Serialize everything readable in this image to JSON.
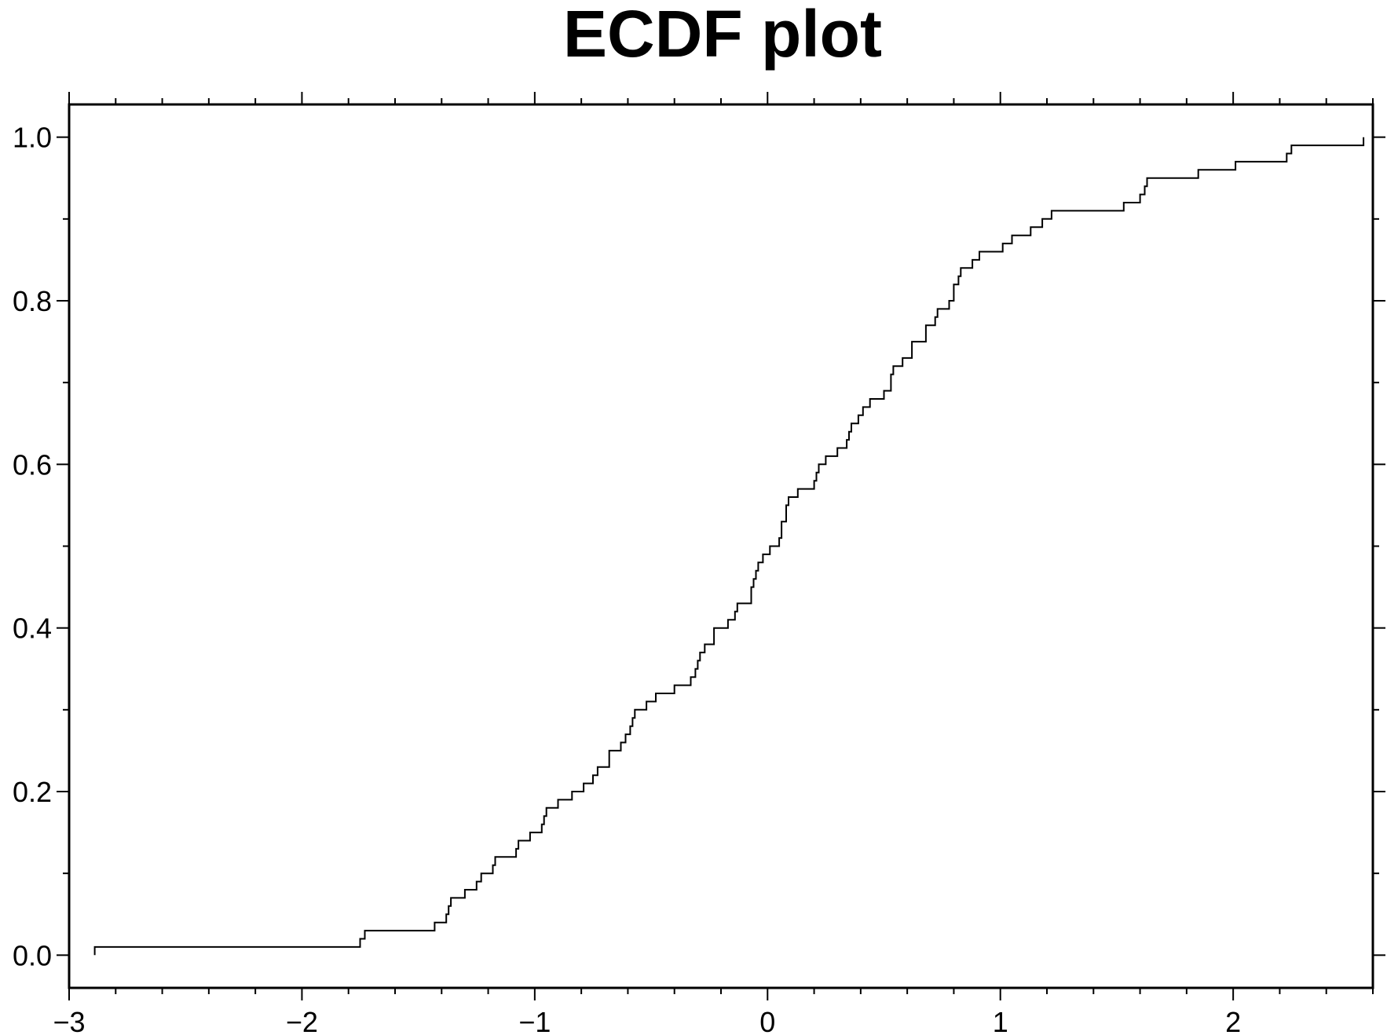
{
  "chart_data": {
    "type": "line",
    "title": "ECDF plot",
    "xlabel": "",
    "ylabel": "",
    "xlim": [
      -3,
      2.6
    ],
    "ylim": [
      -0.04,
      1.04
    ],
    "x_ticks": [
      -3,
      -2,
      -1,
      0,
      1,
      2
    ],
    "x_tick_labels": [
      "−3",
      "−2",
      "−1",
      "0",
      "1",
      "2"
    ],
    "y_ticks": [
      0.0,
      0.2,
      0.4,
      0.6,
      0.8,
      1.0
    ],
    "y_tick_labels": [
      "0.0",
      "0.2",
      "0.4",
      "0.6",
      "0.8",
      "1.0"
    ],
    "grid": false,
    "line_color": "#000000",
    "series": [
      {
        "steps": [
          [
            -2.89,
            0.01
          ],
          [
            -1.75,
            0.02
          ],
          [
            -1.73,
            0.03
          ],
          [
            -1.43,
            0.04
          ],
          [
            -1.38,
            0.05
          ],
          [
            -1.37,
            0.06
          ],
          [
            -1.36,
            0.07
          ],
          [
            -1.3,
            0.08
          ],
          [
            -1.25,
            0.09
          ],
          [
            -1.23,
            0.1
          ],
          [
            -1.18,
            0.11
          ],
          [
            -1.17,
            0.12
          ],
          [
            -1.08,
            0.13
          ],
          [
            -1.07,
            0.14
          ],
          [
            -1.02,
            0.15
          ],
          [
            -0.97,
            0.16
          ],
          [
            -0.96,
            0.17
          ],
          [
            -0.95,
            0.18
          ],
          [
            -0.9,
            0.19
          ],
          [
            -0.84,
            0.2
          ],
          [
            -0.79,
            0.21
          ],
          [
            -0.75,
            0.22
          ],
          [
            -0.73,
            0.23
          ],
          [
            -0.68,
            0.24
          ],
          [
            -0.68,
            0.25
          ],
          [
            -0.63,
            0.26
          ],
          [
            -0.61,
            0.27
          ],
          [
            -0.59,
            0.28
          ],
          [
            -0.58,
            0.29
          ],
          [
            -0.57,
            0.3
          ],
          [
            -0.52,
            0.31
          ],
          [
            -0.48,
            0.32
          ],
          [
            -0.4,
            0.33
          ],
          [
            -0.33,
            0.34
          ],
          [
            -0.31,
            0.35
          ],
          [
            -0.3,
            0.36
          ],
          [
            -0.29,
            0.37
          ],
          [
            -0.27,
            0.38
          ],
          [
            -0.23,
            0.39
          ],
          [
            -0.23,
            0.4
          ],
          [
            -0.17,
            0.41
          ],
          [
            -0.14,
            0.42
          ],
          [
            -0.13,
            0.43
          ],
          [
            -0.07,
            0.44
          ],
          [
            -0.07,
            0.45
          ],
          [
            -0.06,
            0.46
          ],
          [
            -0.05,
            0.47
          ],
          [
            -0.04,
            0.48
          ],
          [
            -0.02,
            0.49
          ],
          [
            0.01,
            0.5
          ],
          [
            0.05,
            0.51
          ],
          [
            0.06,
            0.52
          ],
          [
            0.06,
            0.53
          ],
          [
            0.08,
            0.55
          ],
          [
            0.09,
            0.56
          ],
          [
            0.13,
            0.57
          ],
          [
            0.2,
            0.58
          ],
          [
            0.21,
            0.59
          ],
          [
            0.22,
            0.6
          ],
          [
            0.25,
            0.61
          ],
          [
            0.3,
            0.62
          ],
          [
            0.34,
            0.63
          ],
          [
            0.35,
            0.64
          ],
          [
            0.36,
            0.65
          ],
          [
            0.39,
            0.66
          ],
          [
            0.41,
            0.67
          ],
          [
            0.44,
            0.68
          ],
          [
            0.5,
            0.69
          ],
          [
            0.53,
            0.7
          ],
          [
            0.53,
            0.71
          ],
          [
            0.54,
            0.72
          ],
          [
            0.58,
            0.73
          ],
          [
            0.62,
            0.75
          ],
          [
            0.68,
            0.77
          ],
          [
            0.72,
            0.78
          ],
          [
            0.73,
            0.79
          ],
          [
            0.78,
            0.8
          ],
          [
            0.8,
            0.81
          ],
          [
            0.8,
            0.82
          ],
          [
            0.82,
            0.83
          ],
          [
            0.83,
            0.84
          ],
          [
            0.88,
            0.85
          ],
          [
            0.91,
            0.86
          ],
          [
            1.01,
            0.87
          ],
          [
            1.05,
            0.88
          ],
          [
            1.13,
            0.89
          ],
          [
            1.18,
            0.9
          ],
          [
            1.22,
            0.91
          ],
          [
            1.53,
            0.92
          ],
          [
            1.6,
            0.93
          ],
          [
            1.62,
            0.94
          ],
          [
            1.63,
            0.95
          ],
          [
            1.85,
            0.96
          ],
          [
            2.01,
            0.97
          ],
          [
            2.23,
            0.98
          ],
          [
            2.25,
            0.99
          ],
          [
            2.56,
            1.0
          ]
        ]
      }
    ]
  }
}
